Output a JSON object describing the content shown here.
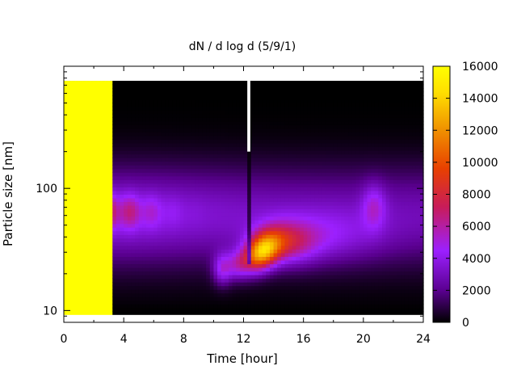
{
  "chart_data": {
    "type": "heatmap",
    "title": "dN / d log d (5/9/1)",
    "xlabel": "Time [hour]",
    "ylabel": "Particle size [nm]",
    "x_range": [
      0,
      24
    ],
    "x_ticks": [
      "0",
      "4",
      "8",
      "12",
      "16",
      "20",
      "24"
    ],
    "x_tick_values": [
      0,
      4,
      8,
      12,
      16,
      20,
      24
    ],
    "y_scale": "log",
    "y_range": [
      8,
      1000
    ],
    "y_ticks": [
      "10",
      "100"
    ],
    "y_tick_values": [
      10,
      100
    ],
    "colorbar": {
      "range": [
        0,
        16000
      ],
      "ticks": [
        "0",
        "2000",
        "4000",
        "6000",
        "8000",
        "10000",
        "12000",
        "14000",
        "16000"
      ],
      "tick_values": [
        0,
        2000,
        4000,
        6000,
        8000,
        10000,
        12000,
        14000,
        16000
      ],
      "palette": [
        "#000000",
        "#5a0090",
        "#9c20ff",
        "#c81c5a",
        "#e84000",
        "#f09000",
        "#ffe000",
        "#ffff00"
      ]
    },
    "grid": false,
    "features": [
      {
        "time_range": [
          0,
          6
        ],
        "size_peak_nm": 65,
        "value_peak": 7500
      },
      {
        "time_range": [
          10,
          11
        ],
        "size_peak_nm": 22,
        "value_peak": 8500
      },
      {
        "time_range": [
          12.5,
          15
        ],
        "size_peak_nm": 30,
        "value_peak": 14500
      },
      {
        "time_range": [
          20,
          21
        ],
        "size_peak_nm": 70,
        "value_peak": 6000
      }
    ]
  }
}
